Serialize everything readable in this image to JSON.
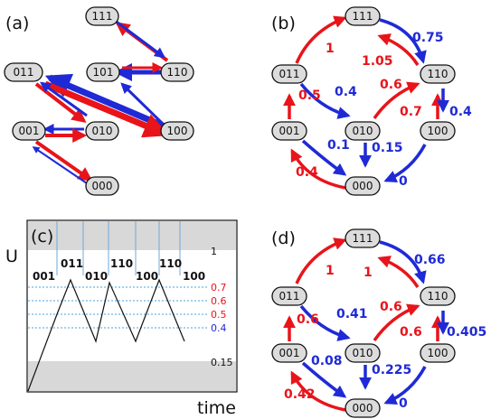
{
  "colors": {
    "red": "#e8141a",
    "blue": "#1f2ad6",
    "node_fill": "#dcdcdc",
    "gray_band": "#d8d8d8",
    "grid_blue": "#6fa8dc",
    "dotted_level": "#4aa3df"
  },
  "panels": {
    "a": {
      "label": "(a)",
      "nodes": [
        "111",
        "011",
        "101",
        "110",
        "001",
        "010",
        "100",
        "000"
      ]
    },
    "b": {
      "label": "(b)",
      "nodes": [
        "111",
        "011",
        "110",
        "001",
        "010",
        "100",
        "000"
      ],
      "rates": [
        {
          "text": "1",
          "color": "red"
        },
        {
          "text": "0.75",
          "color": "blue"
        },
        {
          "text": "1.05",
          "color": "red"
        },
        {
          "text": "0.5",
          "color": "red"
        },
        {
          "text": "0.4",
          "color": "blue"
        },
        {
          "text": "0.6",
          "color": "red"
        },
        {
          "text": "0.7",
          "color": "red"
        },
        {
          "text": "0.4",
          "color": "blue"
        },
        {
          "text": "0.1",
          "color": "blue"
        },
        {
          "text": "0.15",
          "color": "blue"
        },
        {
          "text": "0.4",
          "color": "red"
        },
        {
          "text": "0",
          "color": "blue"
        }
      ]
    },
    "c": {
      "label": "(c)",
      "yaxis": "U",
      "xaxis": "time",
      "state_labels": [
        "001",
        "011",
        "010",
        "110",
        "100",
        "110",
        "100"
      ],
      "levels": [
        {
          "text": "1",
          "color": "#111111"
        },
        {
          "text": "0.7",
          "color": "red"
        },
        {
          "text": "0.6",
          "color": "red"
        },
        {
          "text": "0.5",
          "color": "red"
        },
        {
          "text": "0.4",
          "color": "blue"
        },
        {
          "text": "0.15",
          "color": "#111111"
        }
      ]
    },
    "d": {
      "label": "(d)",
      "nodes": [
        "111",
        "011",
        "110",
        "001",
        "010",
        "100",
        "000"
      ],
      "rates": [
        {
          "text": "1",
          "color": "red"
        },
        {
          "text": "0.66",
          "color": "blue"
        },
        {
          "text": "1",
          "color": "red"
        },
        {
          "text": "0.6",
          "color": "red"
        },
        {
          "text": "0.41",
          "color": "blue"
        },
        {
          "text": "0.6",
          "color": "red"
        },
        {
          "text": "0.6",
          "color": "red"
        },
        {
          "text": "0.405",
          "color": "blue"
        },
        {
          "text": "0.08",
          "color": "blue"
        },
        {
          "text": "0.225",
          "color": "blue"
        },
        {
          "text": "0.42",
          "color": "red"
        },
        {
          "text": "0",
          "color": "blue"
        }
      ]
    }
  }
}
